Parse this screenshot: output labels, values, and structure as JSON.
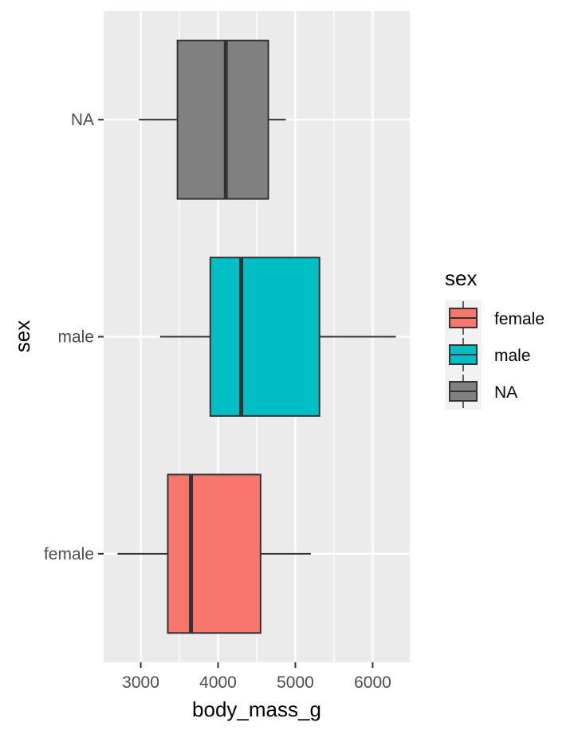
{
  "chart_data": {
    "type": "boxplot",
    "orientation": "horizontal",
    "xlabel": "body_mass_g",
    "ylabel": "sex",
    "xlim": [
      2520,
      6480
    ],
    "x_ticks": [
      3000,
      4000,
      5000,
      6000
    ],
    "x_tick_labels": [
      "3000",
      "4000",
      "5000",
      "6000"
    ],
    "x_minor_ticks": [
      3500,
      4500,
      5500
    ],
    "categories": [
      "NA",
      "male",
      "female"
    ],
    "series": [
      {
        "name": "NA",
        "color": "#808080",
        "min": 2975,
        "q1": 3475,
        "median": 4100,
        "q3": 4650,
        "max": 4875
      },
      {
        "name": "male",
        "color": "#00BFC4",
        "min": 3250,
        "q1": 3900,
        "median": 4300,
        "q3": 5312,
        "max": 6300
      },
      {
        "name": "female",
        "color": "#F8766D",
        "min": 2700,
        "q1": 3350,
        "median": 3650,
        "q3": 4550,
        "max": 5200
      }
    ],
    "legend": {
      "title": "sex",
      "position": "right",
      "entries": [
        {
          "label": "female",
          "color": "#F8766D"
        },
        {
          "label": "male",
          "color": "#00BFC4"
        },
        {
          "label": "NA",
          "color": "#808080"
        }
      ]
    },
    "grid": true,
    "panel_background": "#EBEBEB",
    "grid_color": "#FFFFFF",
    "box_outline_color": "#333333"
  }
}
